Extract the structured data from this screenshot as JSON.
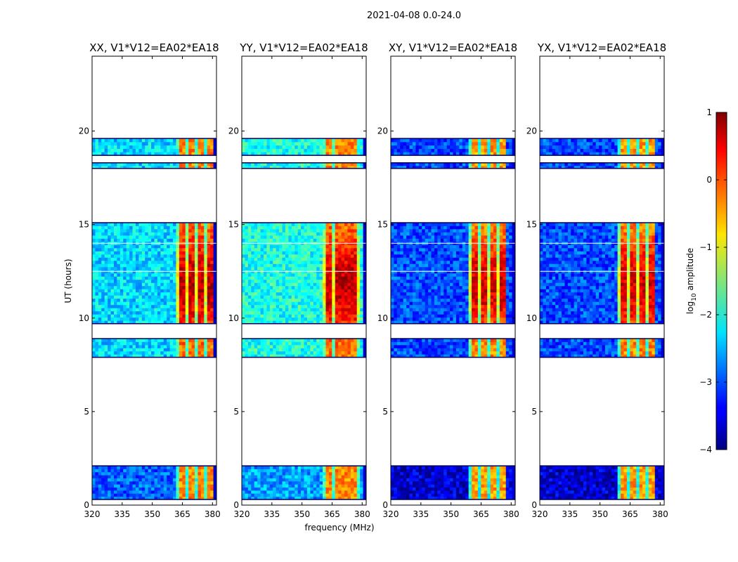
{
  "chart_data": {
    "type": "heatmap",
    "suptitle": "2021-04-08 0.0-24.0",
    "xlabel": "frequency (MHz)",
    "ylabel": "UT (hours)",
    "xlim": [
      320,
      382
    ],
    "ylim": [
      0,
      24
    ],
    "x_ticks": [
      320,
      335,
      350,
      365,
      380
    ],
    "y_ticks": [
      0,
      5,
      10,
      15,
      20
    ],
    "panels": [
      {
        "title": "XX, V1*V12=EA02*EA18",
        "rfi_band_mhz": [
          362.5,
          380
        ],
        "bg_level": -2.3,
        "signal_level": 0.6
      },
      {
        "title": "YY, V1*V12=EA02*EA18",
        "rfi_band_mhz": [
          360.5,
          378.5
        ],
        "bg_level": -2.0,
        "signal_level": 0.6
      },
      {
        "title": "XY, V1*V12=EA02*EA18",
        "rfi_band_mhz": [
          359.5,
          377
        ],
        "bg_level": -3.0,
        "signal_level": 0.5
      },
      {
        "title": "YX, V1*V12=EA02*EA18",
        "rfi_band_mhz": [
          359.5,
          377
        ],
        "bg_level": -3.0,
        "signal_level": 0.5
      }
    ],
    "data_time_ranges_hours": [
      [
        0.3,
        2.1
      ],
      [
        7.9,
        8.9
      ],
      [
        9.7,
        15.1
      ],
      [
        18.0,
        18.3
      ],
      [
        18.7,
        19.6
      ]
    ],
    "colorbar": {
      "label": "log10 amplitude",
      "vmin": -4,
      "vmax": 1,
      "ticks": [
        "1",
        "0",
        "−1",
        "−2",
        "−3",
        "−4"
      ],
      "colormap": "jet"
    }
  }
}
